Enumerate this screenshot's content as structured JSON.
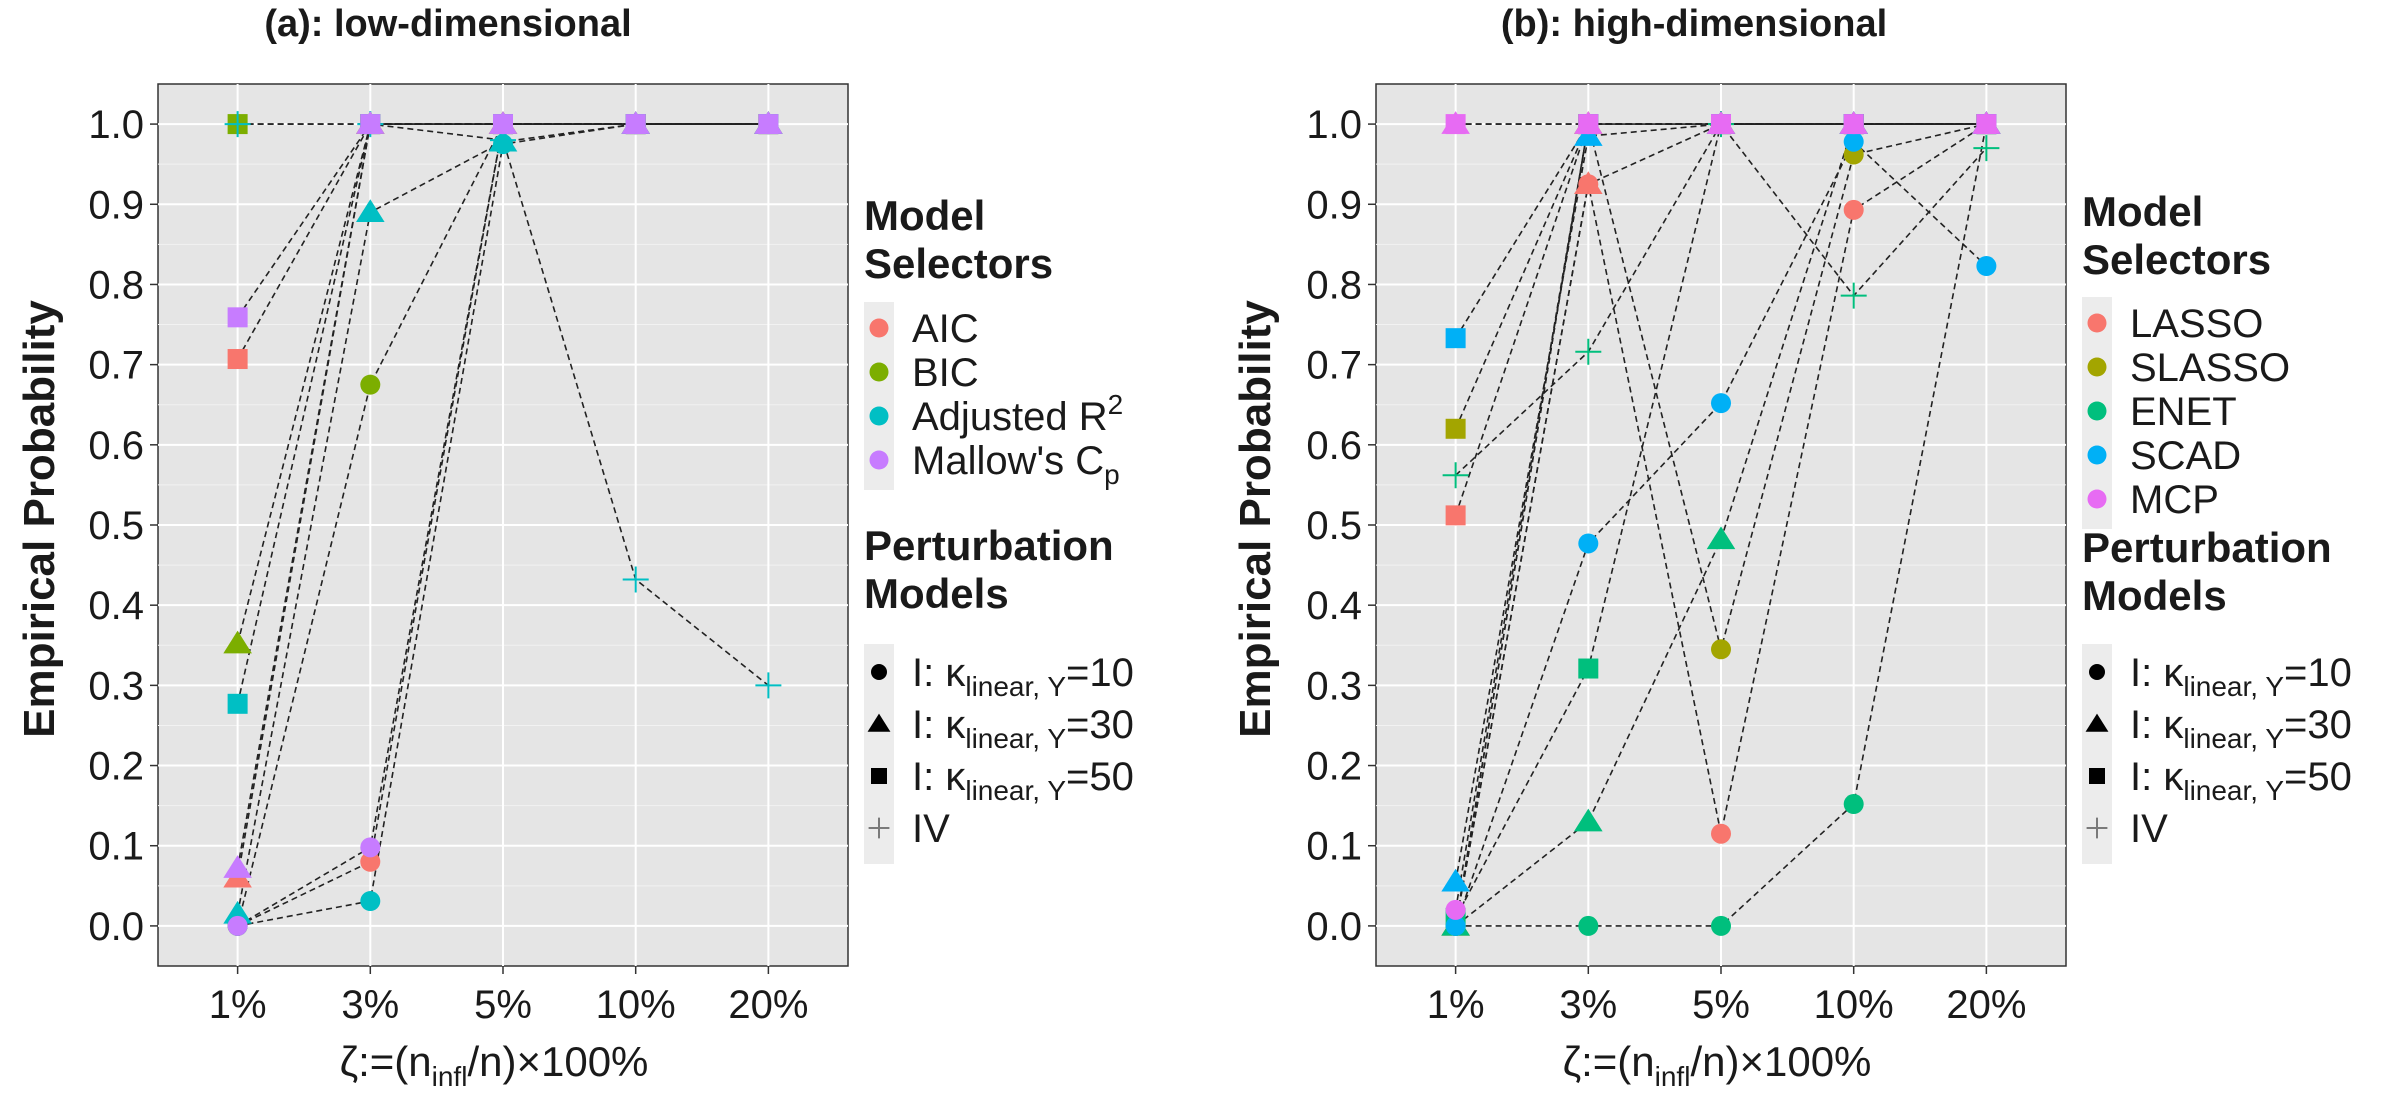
{
  "chart_data": [
    {
      "type": "scatter",
      "title": "(a): low-dimensional",
      "ylabel": "Empirical Probability",
      "xlabel": {
        "main": "ζ:=(n",
        "sub": "infl",
        "rest": "/n)×100%"
      },
      "categories": [
        "1%",
        "3%",
        "5%",
        "10%",
        "20%"
      ],
      "yticks": [
        "0.0",
        "0.1",
        "0.2",
        "0.3",
        "0.4",
        "0.5",
        "0.6",
        "0.7",
        "0.8",
        "0.9",
        "1.0"
      ],
      "ylim": [
        -0.05,
        1.05
      ],
      "legend_selectors_title": [
        "Model",
        "Selectors"
      ],
      "selectors": [
        {
          "name": "AIC",
          "color": "#F8766D"
        },
        {
          "name": "BIC",
          "color": "#7CAE00"
        },
        {
          "name": "Adjusted R",
          "sup": "2",
          "color": "#00BFC4"
        },
        {
          "name": "Mallow's C",
          "sub": "p",
          "color": "#C77CFF"
        }
      ],
      "legend_perturb_title": [
        "Perturbation",
        "Models"
      ],
      "perturbations": [
        {
          "shape": "circle",
          "label": "I: κ",
          "sub": "linear, Y",
          "rest": "=10"
        },
        {
          "shape": "triangle",
          "label": "I: κ",
          "sub": "linear, Y",
          "rest": "=30"
        },
        {
          "shape": "square",
          "label": "I: κ",
          "sub": "linear, Y",
          "rest": "=50"
        },
        {
          "shape": "plus",
          "label": "IV"
        }
      ],
      "series": [
        {
          "selector": 0,
          "shape": "circle",
          "values": [
            0.0,
            0.08,
            1.0,
            1.0,
            1.0
          ]
        },
        {
          "selector": 0,
          "shape": "triangle",
          "values": [
            0.06,
            1.0,
            1.0,
            1.0,
            1.0
          ]
        },
        {
          "selector": 0,
          "shape": "square",
          "values": [
            0.707,
            1.0,
            1.0,
            1.0,
            1.0
          ]
        },
        {
          "selector": 1,
          "shape": "circle",
          "values": [
            0.0,
            0.675,
            1.0,
            1.0,
            1.0
          ]
        },
        {
          "selector": 1,
          "shape": "triangle",
          "values": [
            0.352,
            1.0,
            1.0,
            1.0,
            1.0
          ]
        },
        {
          "selector": 1,
          "shape": "square",
          "values": [
            1.0,
            1.0,
            1.0,
            1.0,
            1.0
          ]
        },
        {
          "selector": 2,
          "shape": "circle",
          "values": [
            0.0,
            0.031,
            0.975,
            1.0,
            1.0
          ]
        },
        {
          "selector": 2,
          "shape": "triangle",
          "values": [
            0.015,
            0.89,
            0.978,
            1.0,
            1.0
          ]
        },
        {
          "selector": 2,
          "shape": "square",
          "values": [
            0.277,
            1.0,
            1.0,
            1.0,
            1.0
          ]
        },
        {
          "selector": 2,
          "shape": "plus",
          "values": [
            1.0,
            1.0,
            0.98,
            0.432,
            0.3
          ]
        },
        {
          "selector": 3,
          "shape": "circle",
          "values": [
            0.0,
            0.098,
            1.0,
            1.0,
            1.0
          ]
        },
        {
          "selector": 3,
          "shape": "triangle",
          "values": [
            0.072,
            1.0,
            1.0,
            1.0,
            1.0
          ]
        },
        {
          "selector": 3,
          "shape": "square",
          "values": [
            0.759,
            1.0,
            1.0,
            1.0,
            1.0
          ]
        }
      ]
    },
    {
      "type": "scatter",
      "title": "(b): high-dimensional",
      "ylabel": "Empirical Probability",
      "xlabel": {
        "main": "ζ:=(n",
        "sub": "infl",
        "rest": "/n)×100%"
      },
      "categories": [
        "1%",
        "3%",
        "5%",
        "10%",
        "20%"
      ],
      "yticks": [
        "0.0",
        "0.1",
        "0.2",
        "0.3",
        "0.4",
        "0.5",
        "0.6",
        "0.7",
        "0.8",
        "0.9",
        "1.0"
      ],
      "ylim": [
        -0.05,
        1.05
      ],
      "legend_selectors_title": [
        "Model",
        "Selectors"
      ],
      "selectors": [
        {
          "name": "LASSO",
          "color": "#F8766D"
        },
        {
          "name": "SLASSO",
          "color": "#A3A500"
        },
        {
          "name": "ENET",
          "color": "#00BF7D"
        },
        {
          "name": "SCAD",
          "color": "#00B0F6"
        },
        {
          "name": "MCP",
          "color": "#E76BF3"
        }
      ],
      "legend_perturb_title": [
        "Perturbation",
        "Models"
      ],
      "perturbations": [
        {
          "shape": "circle",
          "label": "I: κ",
          "sub": "linear, Y",
          "rest": "=10"
        },
        {
          "shape": "triangle",
          "label": "I: κ",
          "sub": "linear, Y",
          "rest": "=30"
        },
        {
          "shape": "square",
          "label": "I: κ",
          "sub": "linear, Y",
          "rest": "=50"
        },
        {
          "shape": "plus",
          "label": "IV"
        }
      ],
      "series": [
        {
          "selector": 0,
          "shape": "circle",
          "values": [
            0.0,
            0.925,
            0.115,
            0.893,
            1.0
          ]
        },
        {
          "selector": 0,
          "shape": "triangle",
          "values": [
            0.0,
            0.925,
            1.0,
            1.0,
            1.0
          ]
        },
        {
          "selector": 0,
          "shape": "square",
          "values": [
            0.512,
            1.0,
            1.0,
            1.0,
            1.0
          ]
        },
        {
          "selector": 1,
          "shape": "circle",
          "values": [
            0.0,
            1.0,
            0.345,
            0.962,
            1.0
          ]
        },
        {
          "selector": 1,
          "shape": "triangle",
          "values": [
            0.0,
            1.0,
            1.0,
            1.0,
            1.0
          ]
        },
        {
          "selector": 1,
          "shape": "square",
          "values": [
            0.62,
            1.0,
            1.0,
            1.0,
            1.0
          ]
        },
        {
          "selector": 2,
          "shape": "circle",
          "values": [
            0.0,
            0.0,
            0.0,
            0.152,
            1.0
          ]
        },
        {
          "selector": 2,
          "shape": "triangle",
          "values": [
            0.0,
            0.13,
            0.482,
            1.0,
            1.0
          ]
        },
        {
          "selector": 2,
          "shape": "square",
          "values": [
            0.01,
            0.321,
            1.0,
            1.0,
            1.0
          ]
        },
        {
          "selector": 2,
          "shape": "plus",
          "values": [
            0.562,
            0.716,
            1.0,
            0.786,
            0.97
          ]
        },
        {
          "selector": 3,
          "shape": "circle",
          "values": [
            0.0,
            0.477,
            0.652,
            0.978,
            0.823
          ]
        },
        {
          "selector": 3,
          "shape": "triangle",
          "values": [
            0.055,
            0.985,
            1.0,
            1.0,
            1.0
          ]
        },
        {
          "selector": 3,
          "shape": "square",
          "values": [
            0.733,
            1.0,
            1.0,
            1.0,
            1.0
          ]
        },
        {
          "selector": 4,
          "shape": "circle",
          "values": [
            0.02,
            1.0,
            1.0,
            1.0,
            1.0
          ]
        },
        {
          "selector": 4,
          "shape": "triangle",
          "values": [
            1.0,
            1.0,
            1.0,
            1.0,
            1.0
          ]
        },
        {
          "selector": 4,
          "shape": "square",
          "values": [
            1.0,
            1.0,
            1.0,
            1.0,
            1.0
          ]
        }
      ]
    }
  ]
}
